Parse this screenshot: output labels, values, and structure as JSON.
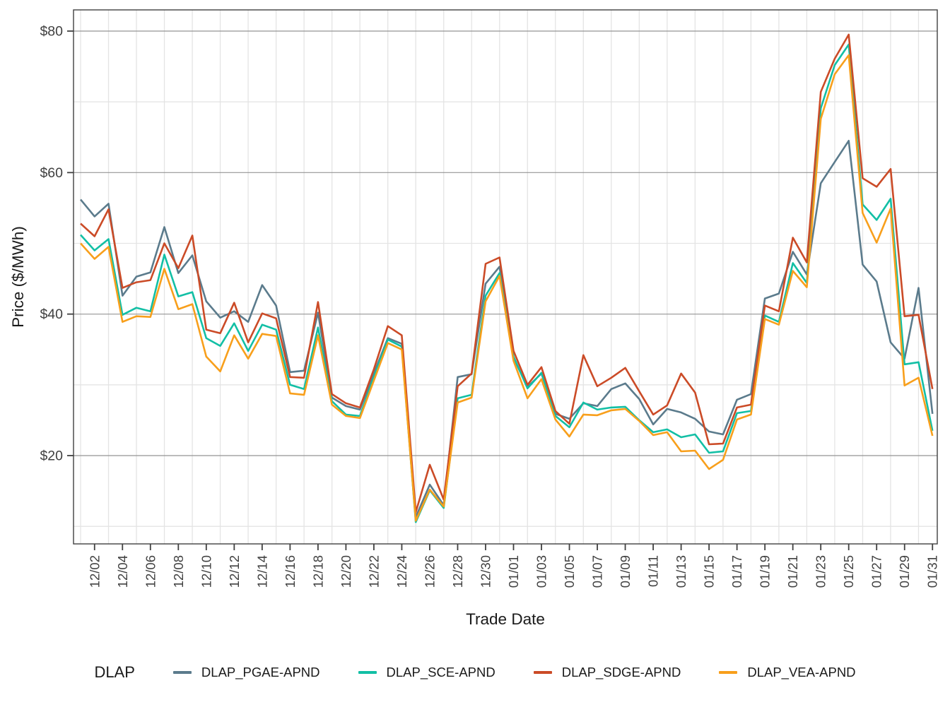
{
  "chart_data": {
    "type": "line",
    "title": "",
    "xlabel": "Trade Date",
    "ylabel": "Price ($/MWh)",
    "legend_title": "DLAP",
    "legend_position": "bottom",
    "grid": true,
    "ylim": [
      7.5,
      83
    ],
    "y_major_ticks": [
      20,
      40,
      60,
      80
    ],
    "y_minor_ticks": [
      10,
      30,
      50,
      70
    ],
    "y_tick_labels": [
      "$20",
      "$40",
      "$60",
      "$80"
    ],
    "x": [
      "12/01",
      "12/02",
      "12/03",
      "12/04",
      "12/05",
      "12/06",
      "12/07",
      "12/08",
      "12/09",
      "12/10",
      "12/11",
      "12/12",
      "12/13",
      "12/14",
      "12/15",
      "12/16",
      "12/17",
      "12/18",
      "12/19",
      "12/20",
      "12/21",
      "12/22",
      "12/23",
      "12/24",
      "12/25",
      "12/26",
      "12/27",
      "12/28",
      "12/29",
      "12/30",
      "12/31",
      "01/01",
      "01/02",
      "01/03",
      "01/04",
      "01/05",
      "01/06",
      "01/07",
      "01/08",
      "01/09",
      "01/10",
      "01/11",
      "01/12",
      "01/13",
      "01/14",
      "01/15",
      "01/16",
      "01/17",
      "01/18",
      "01/19",
      "01/20",
      "01/21",
      "01/22",
      "01/23",
      "01/24",
      "01/25",
      "01/26",
      "01/27",
      "01/28",
      "01/29",
      "01/30",
      "01/31"
    ],
    "x_tick_labels": [
      "12/02",
      "12/04",
      "12/06",
      "12/08",
      "12/10",
      "12/12",
      "12/14",
      "12/16",
      "12/18",
      "12/20",
      "12/22",
      "12/24",
      "12/26",
      "12/28",
      "12/30",
      "01/01",
      "01/03",
      "01/05",
      "01/07",
      "01/09",
      "01/11",
      "01/13",
      "01/15",
      "01/17",
      "01/19",
      "01/21",
      "01/23",
      "01/25",
      "01/27",
      "01/29",
      "01/31"
    ],
    "series": [
      {
        "name": "DLAP_PGAE-APND",
        "color": "#5b7b8c",
        "values": [
          56.2,
          53.8,
          55.6,
          42.6,
          45.3,
          45.9,
          52.3,
          45.8,
          48.3,
          41.8,
          39.5,
          40.4,
          38.9,
          44.1,
          41.2,
          31.8,
          32.0,
          40.2,
          28.2,
          27.0,
          26.5,
          31.6,
          36.6,
          35.8,
          11.3,
          15.9,
          13.0,
          31.1,
          31.5,
          44.3,
          46.7,
          33.8,
          29.7,
          31.6,
          25.9,
          25.2,
          27.4,
          27.0,
          29.4,
          30.2,
          28.0,
          24.4,
          26.6,
          26.1,
          25.2,
          23.4,
          23.0,
          27.9,
          28.7,
          42.2,
          42.9,
          48.8,
          45.6,
          58.5,
          61.5,
          64.5,
          47.0,
          44.6,
          36.0,
          33.7,
          43.7,
          25.9
        ]
      },
      {
        "name": "DLAP_SCE-APND",
        "color": "#12bfa5",
        "values": [
          51.2,
          49.0,
          50.6,
          39.9,
          40.9,
          40.4,
          48.4,
          42.5,
          43.1,
          36.6,
          35.5,
          38.7,
          34.8,
          38.5,
          37.8,
          30.0,
          29.4,
          38.1,
          27.7,
          25.8,
          25.6,
          31.1,
          36.4,
          35.4,
          10.6,
          15.1,
          12.6,
          28.1,
          28.6,
          42.6,
          45.8,
          34.0,
          29.5,
          31.7,
          25.6,
          24.0,
          27.5,
          26.5,
          26.8,
          26.9,
          25.0,
          23.3,
          23.7,
          22.6,
          23.0,
          20.4,
          20.6,
          26.0,
          26.3,
          39.8,
          38.9,
          47.2,
          44.4,
          69.1,
          75.2,
          78.1,
          55.5,
          53.3,
          56.3,
          32.9,
          33.2,
          23.5
        ]
      },
      {
        "name": "DLAP_SDGE-APND",
        "color": "#cb4b27",
        "values": [
          52.8,
          51.0,
          54.8,
          43.7,
          44.5,
          44.8,
          50.0,
          46.5,
          51.1,
          37.8,
          37.3,
          41.6,
          36.0,
          40.1,
          39.4,
          31.1,
          31.0,
          41.7,
          28.7,
          27.4,
          26.8,
          32.2,
          38.3,
          37.0,
          12.0,
          18.7,
          13.8,
          29.8,
          31.6,
          47.1,
          48.0,
          34.8,
          30.0,
          32.5,
          26.3,
          24.5,
          34.2,
          29.8,
          31.0,
          32.4,
          29.1,
          25.8,
          27.1,
          31.6,
          28.9,
          21.6,
          21.7,
          26.8,
          27.2,
          41.2,
          40.4,
          50.8,
          47.3,
          71.4,
          76.1,
          79.5,
          59.2,
          58.0,
          60.5,
          39.7,
          39.9,
          29.4
        ]
      },
      {
        "name": "DLAP_VEA-APND",
        "color": "#f89f1b",
        "values": [
          50.0,
          47.8,
          49.5,
          38.9,
          39.7,
          39.6,
          46.4,
          40.7,
          41.4,
          34.0,
          31.9,
          37.0,
          33.7,
          37.2,
          36.9,
          28.8,
          28.6,
          37.0,
          27.2,
          25.6,
          25.3,
          30.6,
          35.9,
          35.0,
          10.8,
          15.2,
          12.8,
          27.5,
          28.2,
          41.8,
          45.4,
          33.4,
          28.1,
          30.8,
          25.1,
          22.7,
          25.8,
          25.7,
          26.4,
          26.6,
          24.9,
          22.9,
          23.3,
          20.6,
          20.7,
          18.1,
          19.4,
          25.1,
          25.8,
          39.3,
          38.5,
          46.1,
          43.8,
          67.6,
          73.9,
          76.6,
          54.3,
          50.1,
          54.9,
          29.9,
          31.0,
          22.8
        ]
      }
    ],
    "colors": {
      "axis_text": "#404040",
      "axis_title": "#1a1a1a",
      "panel_border": "#404040",
      "grid_major": "#949494",
      "grid_minor": "#e4e4e4",
      "background": "#ffffff"
    }
  }
}
